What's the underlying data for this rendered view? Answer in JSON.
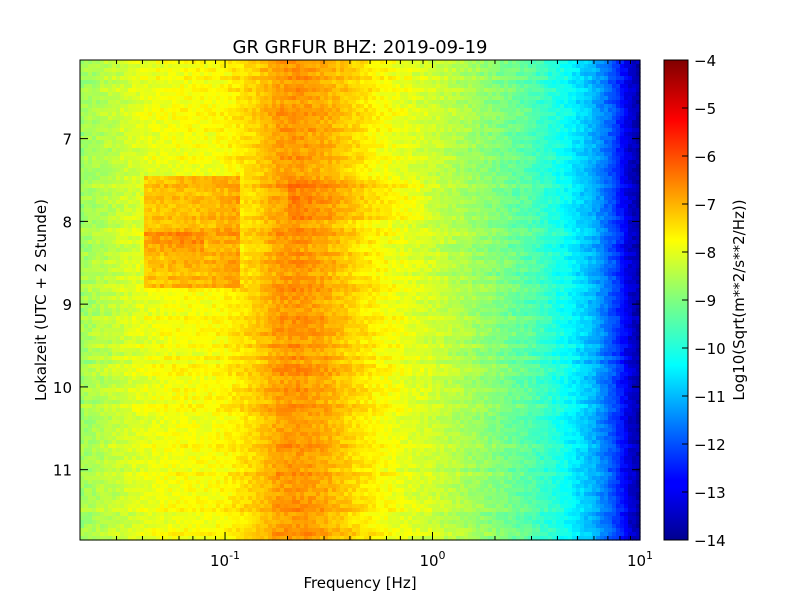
{
  "chart_data": {
    "type": "heatmap",
    "title": "GR GRFUR BHZ: 2019-09-19",
    "xlabel": "Frequency [Hz]",
    "ylabel": "Lokalzeit (UTC + 2 Stunde)",
    "x_scale": "log",
    "xlim": [
      0.02,
      10
    ],
    "ylim": [
      11.85,
      6.05
    ],
    "y_inverted": true,
    "x_ticks": [
      {
        "value": 0.1,
        "base": "10",
        "exp": "-1"
      },
      {
        "value": 1,
        "base": "10",
        "exp": "0"
      },
      {
        "value": 10,
        "base": "10",
        "exp": "1"
      }
    ],
    "y_ticks": [
      {
        "value": 7,
        "label": "7"
      },
      {
        "value": 8,
        "label": "8"
      },
      {
        "value": 9,
        "label": "9"
      },
      {
        "value": 10,
        "label": "10"
      },
      {
        "value": 11,
        "label": "11"
      }
    ],
    "colorbar": {
      "label": "Log10(Sqrt(m**2/s**2/Hz))",
      "colormap": "jet",
      "range": [
        -14,
        -4
      ],
      "ticks": [
        {
          "value": -4,
          "label": "−4"
        },
        {
          "value": -5,
          "label": "−5"
        },
        {
          "value": -6,
          "label": "−6"
        },
        {
          "value": -7,
          "label": "−7"
        },
        {
          "value": -8,
          "label": "−8"
        },
        {
          "value": -9,
          "label": "−9"
        },
        {
          "value": -10,
          "label": "−10"
        },
        {
          "value": -11,
          "label": "−11"
        },
        {
          "value": -12,
          "label": "−12"
        },
        {
          "value": -13,
          "label": "−13"
        },
        {
          "value": -14,
          "label": "−14"
        }
      ]
    },
    "spectrum_profile": {
      "frequency_hz": [
        0.02,
        0.04,
        0.06,
        0.08,
        0.1,
        0.14,
        0.18,
        0.22,
        0.3,
        0.4,
        0.55,
        0.75,
        1.0,
        1.5,
        2.0,
        3.0,
        4.5,
        6.0,
        7.5,
        9.0,
        10.0
      ],
      "level_log10": [
        -8.7,
        -8.0,
        -7.8,
        -7.8,
        -7.7,
        -7.3,
        -6.8,
        -6.7,
        -6.9,
        -7.3,
        -7.7,
        -8.0,
        -8.2,
        -8.6,
        -8.9,
        -9.4,
        -10.2,
        -11.0,
        -12.0,
        -13.2,
        -13.6
      ]
    },
    "time_features": [
      {
        "from": 7.45,
        "to": 8.8,
        "freq_from": 0.04,
        "freq_to": 0.12,
        "delta_log10": 0.75
      },
      {
        "from": 8.15,
        "to": 8.35,
        "freq_from": 0.04,
        "freq_to": 0.08,
        "delta_log10": 0.4
      },
      {
        "from": 7.5,
        "to": 8.0,
        "freq_from": 0.2,
        "freq_to": 0.9,
        "delta_log10": 0.25
      }
    ],
    "grid": false
  }
}
